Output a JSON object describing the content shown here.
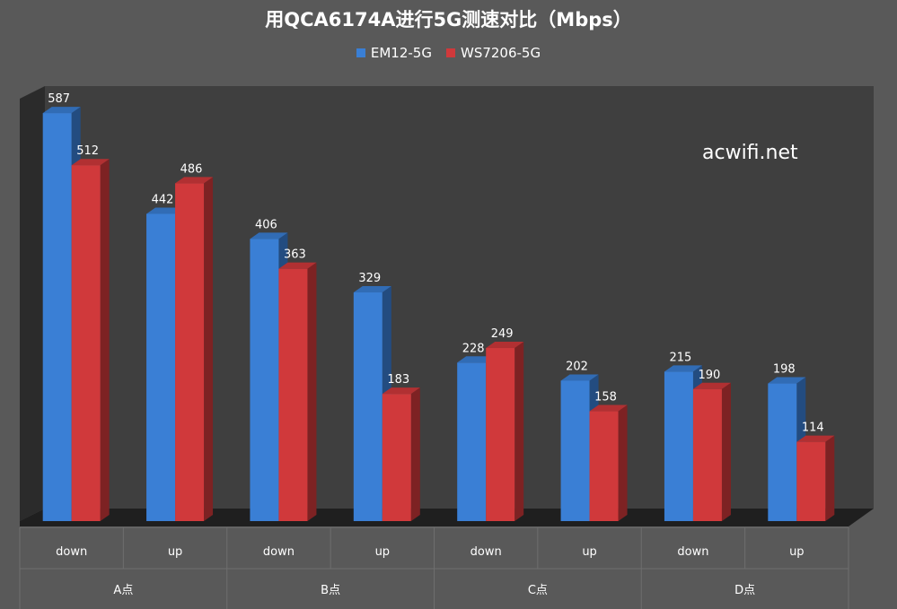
{
  "chart_data": {
    "type": "bar",
    "title": "用QCA6174A进行5G测速对比（Mbps）",
    "categories": [
      "down",
      "up",
      "down",
      "up",
      "down",
      "up",
      "down",
      "up"
    ],
    "groups": [
      "A点",
      "B点",
      "C点",
      "D点"
    ],
    "series": [
      {
        "name": "EM12-5G",
        "color": "#3a7fd5",
        "values": [
          587,
          442,
          406,
          329,
          228,
          202,
          215,
          198
        ]
      },
      {
        "name": "WS7206-5G",
        "color": "#d0393b",
        "values": [
          512,
          486,
          363,
          183,
          249,
          158,
          190,
          114
        ]
      }
    ],
    "ylim": [
      0,
      600
    ],
    "grid": false,
    "legend_position": "top-center",
    "style": "3d-clustered-column"
  },
  "watermark": "acwifi.net"
}
